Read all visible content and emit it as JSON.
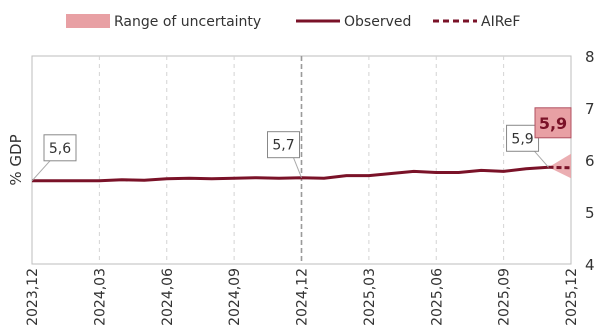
{
  "chart_data": {
    "type": "line",
    "legend": {
      "placement": "top",
      "items": [
        {
          "label": "Range of uncertainty",
          "style": "band",
          "color": "#e8a0a4"
        },
        {
          "label": "Observed",
          "style": "solid",
          "color": "#7a1228"
        },
        {
          "label": "AIReF",
          "style": "dashed",
          "color": "#7a1228"
        }
      ]
    },
    "ylabel": "% GDP",
    "ylim": [
      4,
      8
    ],
    "yticks": [
      "4",
      "5",
      "6",
      "7",
      "8"
    ],
    "x": [
      "2023,12",
      "2024,01",
      "2024,02",
      "2024,03",
      "2024,04",
      "2024,05",
      "2024,06",
      "2024,07",
      "2024,08",
      "2024,09",
      "2024,10",
      "2024,11",
      "2024,12",
      "2025,01",
      "2025,02",
      "2025,03",
      "2025,04",
      "2025,05",
      "2025,06",
      "2025,07",
      "2025,08",
      "2025,09",
      "2025,10",
      "2025,11",
      "2025,12"
    ],
    "xtick_labels": [
      "2023,12",
      "2024,03",
      "2024,06",
      "2024,09",
      "2024,12",
      "2025,03",
      "2025,06",
      "2025,09",
      "2025,12"
    ],
    "series": [
      {
        "name": "Observed",
        "style": "solid",
        "color": "#7a1228",
        "values": [
          5.6,
          5.6,
          5.6,
          5.6,
          5.62,
          5.61,
          5.64,
          5.65,
          5.64,
          5.65,
          5.66,
          5.65,
          5.66,
          5.65,
          5.7,
          5.7,
          5.74,
          5.78,
          5.76,
          5.76,
          5.8,
          5.78,
          5.83,
          5.86,
          null
        ]
      },
      {
        "name": "AIReF",
        "style": "dashed",
        "color": "#7a1228",
        "values": [
          null,
          null,
          null,
          null,
          null,
          null,
          null,
          null,
          null,
          null,
          null,
          null,
          null,
          null,
          null,
          null,
          null,
          null,
          null,
          null,
          null,
          null,
          null,
          5.86,
          5.85
        ]
      }
    ],
    "uncertainty_band": {
      "x_start": "2025,11",
      "value_start": 5.86,
      "x_end": "2025,12",
      "low_end": 5.65,
      "high_end": 6.12,
      "color": "#e8a0a4"
    },
    "annotations": [
      {
        "text": "5,6",
        "x": "2023,12",
        "value": 5.6,
        "style": "box"
      },
      {
        "text": "5,7",
        "x": "2024,12",
        "value": 5.66,
        "style": "box"
      },
      {
        "text": "5,9",
        "x": "2025,11",
        "value": 5.86,
        "style": "box"
      },
      {
        "text": "5,9",
        "x": "2025,12",
        "value": 5.85,
        "style": "highlight"
      }
    ],
    "vertical_marker": "2024,12",
    "grid": "vertical-dashed"
  }
}
